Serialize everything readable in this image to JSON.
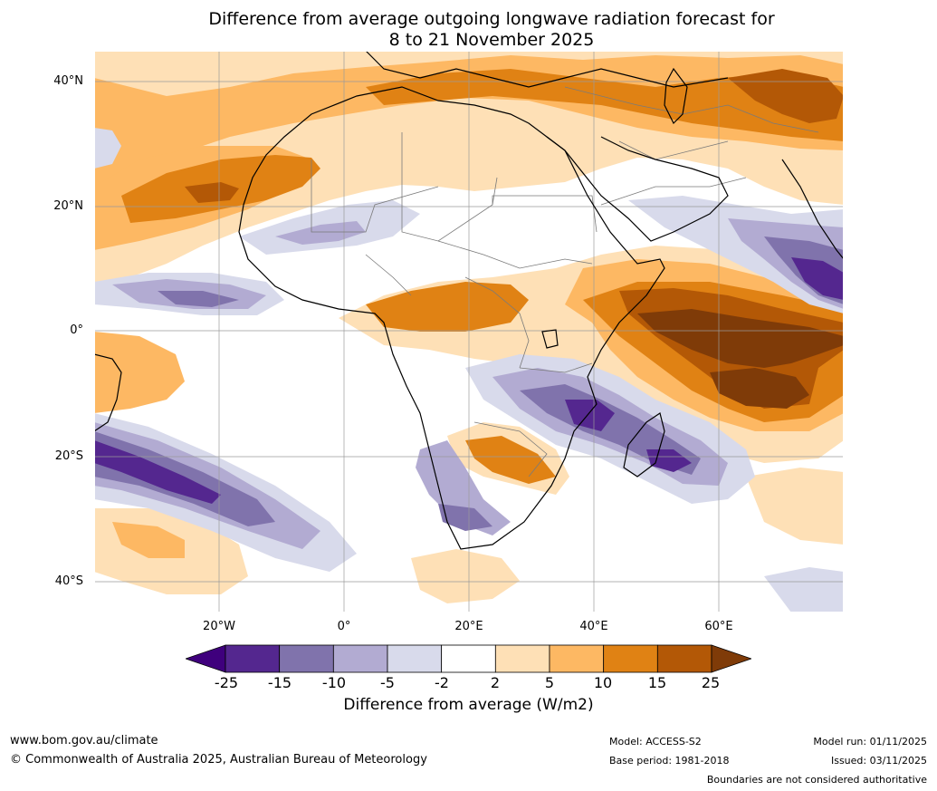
{
  "title_line1": "Difference from average outgoing longwave radiation forecast for",
  "title_line2": "8 to 21 November 2025",
  "lat_labels": [
    "40°N",
    "20°N",
    "0°",
    "20°S",
    "40°S"
  ],
  "lon_labels": [
    "20°W",
    "0°",
    "20°E",
    "40°E",
    "60°E"
  ],
  "colorbar": {
    "ticks": [
      "-25",
      "-15",
      "-10",
      "-5",
      "-2",
      "2",
      "5",
      "10",
      "15",
      "25"
    ],
    "colors": [
      "#3f007d",
      "#54278f",
      "#8073ac",
      "#b2abd2",
      "#d8daeb",
      "#ffffff",
      "#fee0b6",
      "#fdb863",
      "#e08214",
      "#b35806",
      "#7f3b08"
    ],
    "label": "Difference from average (W/m2)"
  },
  "footer": {
    "url": "www.bom.gov.au/climate",
    "copyright": "© Commonwealth of Australia 2025, Australian Bureau of Meteorology",
    "model": "Model: ACCESS-S2",
    "base_period": "Base period: 1981-2018",
    "model_run": "Model run: 01/11/2025",
    "issued": "Issued: 03/11/2025",
    "disclaimer": "Boundaries are not considered authoritative"
  }
}
